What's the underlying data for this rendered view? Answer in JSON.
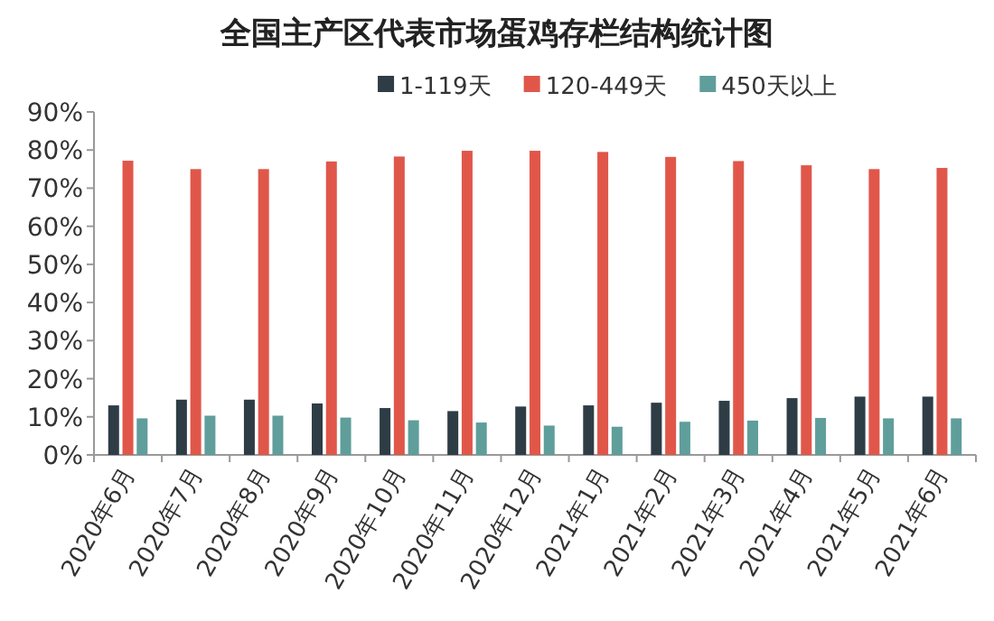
{
  "chart_data": {
    "type": "bar",
    "title": "全国主产区代表市场蛋鸡存栏结构统计图",
    "categories": [
      "2020年6月",
      "2020年7月",
      "2020年8月",
      "2020年9月",
      "2020年10月",
      "2020年11月",
      "2020年12月",
      "2021年1月",
      "2021年2月",
      "2021年3月",
      "2021年4月",
      "2021年5月",
      "2021年6月"
    ],
    "series": [
      {
        "name": "1-119天",
        "color": "#2e3d45",
        "values": [
          13,
          14.5,
          14.5,
          13.5,
          12.3,
          11.5,
          12.7,
          13,
          13.7,
          14.2,
          14.9,
          15.3,
          15.3
        ]
      },
      {
        "name": "120-449天",
        "color": "#e0574a",
        "values": [
          77.2,
          75,
          75,
          77,
          78.3,
          79.8,
          79.8,
          79.5,
          78.2,
          77.1,
          76,
          75,
          75.3
        ]
      },
      {
        "name": "450天以上",
        "color": "#5f9e9b",
        "values": [
          9.6,
          10.3,
          10.3,
          9.8,
          9.1,
          8.5,
          7.7,
          7.4,
          8.7,
          9,
          9.7,
          9.6,
          9.6
        ]
      }
    ],
    "ylim": [
      0,
      90
    ],
    "yticks": [
      {
        "value": 0,
        "label": "0%"
      },
      {
        "value": 10,
        "label": "10%"
      },
      {
        "value": 20,
        "label": "20%"
      },
      {
        "value": 30,
        "label": "30%"
      },
      {
        "value": 40,
        "label": "40%"
      },
      {
        "value": 50,
        "label": "50%"
      },
      {
        "value": 60,
        "label": "60%"
      },
      {
        "value": 70,
        "label": "70%"
      },
      {
        "value": 80,
        "label": "80%"
      },
      {
        "value": 90,
        "label": "90%"
      }
    ],
    "grid": false,
    "legend": "top"
  }
}
